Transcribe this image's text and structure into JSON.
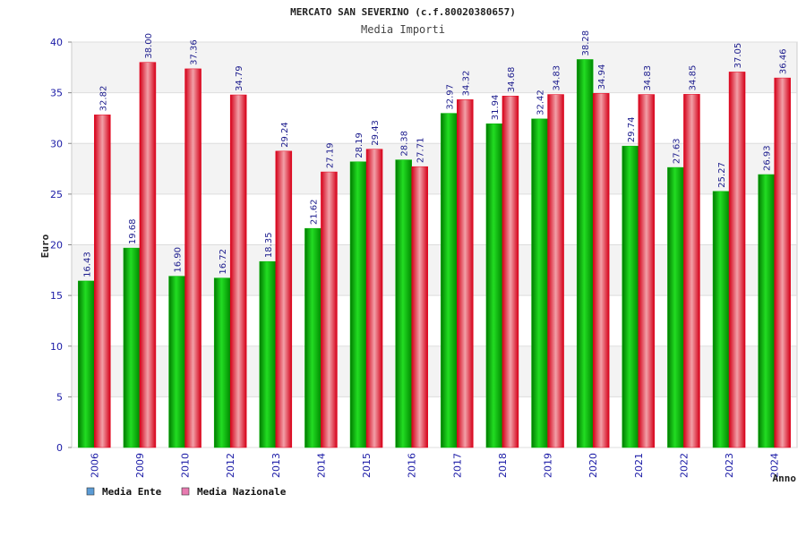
{
  "chart_data": {
    "type": "bar",
    "title": "MERCATO SAN SEVERINO (c.f.80020380657)",
    "subtitle": "Media Importi",
    "xlabel": "Anno",
    "ylabel": "Euro",
    "ylim": [
      0,
      40
    ],
    "yticks": [
      "0",
      "5",
      "10",
      "15",
      "20",
      "25",
      "30",
      "35",
      "40"
    ],
    "grid": true,
    "legend_position": "bottom-left",
    "categories": [
      "2006",
      "2009",
      "2010",
      "2012",
      "2013",
      "2014",
      "2015",
      "2016",
      "2017",
      "2018",
      "2019",
      "2020",
      "2021",
      "2022",
      "2023",
      "2024"
    ],
    "series": [
      {
        "name": "Media Ente",
        "color": "#00b400",
        "legend_color": "#5b9bd5",
        "values": [
          16.43,
          19.68,
          16.9,
          16.72,
          18.35,
          21.62,
          28.19,
          28.38,
          32.97,
          31.94,
          32.42,
          38.28,
          29.74,
          27.63,
          25.27,
          26.93
        ],
        "labels": [
          "16.43",
          "19.68",
          "16.90",
          "16.72",
          "18.35",
          "21.62",
          "28.19",
          "28.38",
          "32.97",
          "31.94",
          "32.42",
          "38.28",
          "29.74",
          "27.63",
          "25.27",
          "26.93"
        ]
      },
      {
        "name": "Media Nazionale",
        "color": "#e8001c",
        "legend_color": "#e87ab0",
        "values": [
          32.82,
          38.0,
          37.36,
          34.79,
          29.24,
          27.19,
          29.43,
          27.71,
          34.32,
          34.68,
          34.83,
          34.94,
          34.83,
          34.85,
          37.05,
          36.46
        ],
        "labels": [
          "32.82",
          "38.00",
          "37.36",
          "34.79",
          "29.24",
          "27.19",
          "29.43",
          "27.71",
          "34.32",
          "34.68",
          "34.83",
          "34.94",
          "34.83",
          "34.85",
          "37.05",
          "36.46"
        ]
      }
    ]
  }
}
